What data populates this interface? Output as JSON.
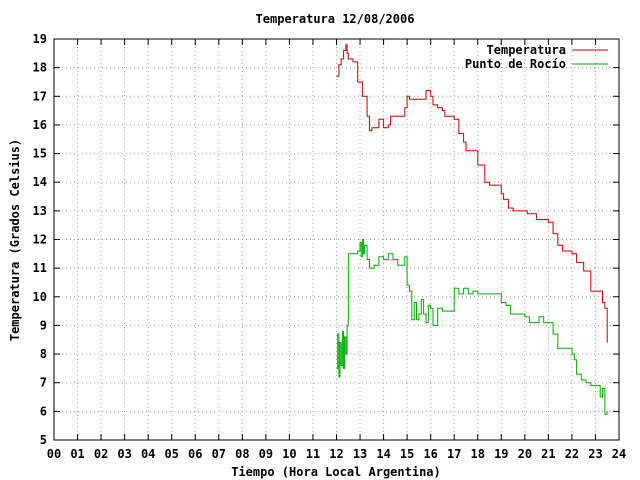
{
  "chart_data": {
    "type": "line",
    "title": "Temperatura 12/08/2006",
    "xlabel": "Tiempo (Hora Local Argentina)",
    "ylabel": "Temperatura (Grados Celsius)",
    "xlim": [
      0,
      24
    ],
    "ylim": [
      5,
      19
    ],
    "xticks": [
      "00",
      "01",
      "02",
      "03",
      "04",
      "05",
      "06",
      "07",
      "08",
      "09",
      "10",
      "11",
      "12",
      "13",
      "14",
      "15",
      "16",
      "17",
      "18",
      "19",
      "20",
      "21",
      "22",
      "23",
      "24"
    ],
    "yticks": [
      5,
      6,
      7,
      8,
      9,
      10,
      11,
      12,
      13,
      14,
      15,
      16,
      17,
      18,
      19
    ],
    "grid": true,
    "legend_position": "top-right",
    "series": [
      {
        "name": "Temperatura",
        "color": "#cc0000",
        "x": [
          12.0,
          12.1,
          12.2,
          12.3,
          12.4,
          12.45,
          12.5,
          12.6,
          12.7,
          12.9,
          13.0,
          13.1,
          13.3,
          13.4,
          13.5,
          13.6,
          13.7,
          13.8,
          14.0,
          14.1,
          14.2,
          14.3,
          14.5,
          14.7,
          14.9,
          15.0,
          15.1,
          15.2,
          15.4,
          15.6,
          15.8,
          16.0,
          16.1,
          16.2,
          16.3,
          16.5,
          16.6,
          16.8,
          17.0,
          17.2,
          17.4,
          17.5,
          17.7,
          18.0,
          18.3,
          18.5,
          18.7,
          19.0,
          19.1,
          19.3,
          19.5,
          20.0,
          20.1,
          20.3,
          20.5,
          20.8,
          21.0,
          21.2,
          21.4,
          21.6,
          22.0,
          22.2,
          22.5,
          22.8,
          23.0,
          23.2,
          23.3,
          23.4,
          23.5
        ],
        "values": [
          17.7,
          18.1,
          18.3,
          18.6,
          18.8,
          18.5,
          18.3,
          18.3,
          18.2,
          17.5,
          17.5,
          17.0,
          16.3,
          15.8,
          15.9,
          15.9,
          15.9,
          16.2,
          15.9,
          15.9,
          16.0,
          16.3,
          16.3,
          16.3,
          16.6,
          17.0,
          16.9,
          16.9,
          16.9,
          16.9,
          17.2,
          17.0,
          16.7,
          16.7,
          16.6,
          16.5,
          16.3,
          16.3,
          16.2,
          15.7,
          15.4,
          15.1,
          15.1,
          14.6,
          14.0,
          13.9,
          13.9,
          13.6,
          13.4,
          13.1,
          13.0,
          13.0,
          12.9,
          12.9,
          12.7,
          12.7,
          12.6,
          12.2,
          11.8,
          11.6,
          11.5,
          11.2,
          10.9,
          10.2,
          10.2,
          10.2,
          9.8,
          9.6,
          8.4
        ]
      },
      {
        "name": "Punto de Rocío",
        "color": "#00aa00",
        "x": [
          12.0,
          12.05,
          12.1,
          12.15,
          12.2,
          12.25,
          12.3,
          12.35,
          12.4,
          12.45,
          12.5,
          12.6,
          12.8,
          12.9,
          13.0,
          13.05,
          13.1,
          13.15,
          13.2,
          13.3,
          13.4,
          13.6,
          13.8,
          14.0,
          14.2,
          14.4,
          14.6,
          14.8,
          14.9,
          15.0,
          15.1,
          15.2,
          15.3,
          15.4,
          15.5,
          15.6,
          15.7,
          15.8,
          15.9,
          16.0,
          16.1,
          16.3,
          16.5,
          16.8,
          17.0,
          17.2,
          17.4,
          17.6,
          17.8,
          18.0,
          18.3,
          18.6,
          18.8,
          19.0,
          19.2,
          19.4,
          19.6,
          20.0,
          20.2,
          20.4,
          20.6,
          20.8,
          21.0,
          21.2,
          21.4,
          21.6,
          22.0,
          22.1,
          22.2,
          22.4,
          22.6,
          22.8,
          23.0,
          23.2,
          23.3,
          23.4,
          23.5
        ],
        "values": [
          7.5,
          8.7,
          7.2,
          8.4,
          7.6,
          8.8,
          7.5,
          8.6,
          8.0,
          9.0,
          11.5,
          11.5,
          11.5,
          11.6,
          11.9,
          11.4,
          12.0,
          11.5,
          11.8,
          11.3,
          11.0,
          11.1,
          11.4,
          11.3,
          11.5,
          11.3,
          11.1,
          11.1,
          11.4,
          10.4,
          10.2,
          9.2,
          9.8,
          9.2,
          9.4,
          9.9,
          9.4,
          9.1,
          9.7,
          9.6,
          9.0,
          9.6,
          9.5,
          9.5,
          10.3,
          10.1,
          10.3,
          10.1,
          10.2,
          10.1,
          10.1,
          10.1,
          10.1,
          9.8,
          9.7,
          9.4,
          9.4,
          9.3,
          9.1,
          9.1,
          9.3,
          9.1,
          9.1,
          8.7,
          8.2,
          8.2,
          8.0,
          7.8,
          7.3,
          7.1,
          7.0,
          6.9,
          6.9,
          6.5,
          6.8,
          5.9,
          6.0
        ]
      }
    ]
  }
}
